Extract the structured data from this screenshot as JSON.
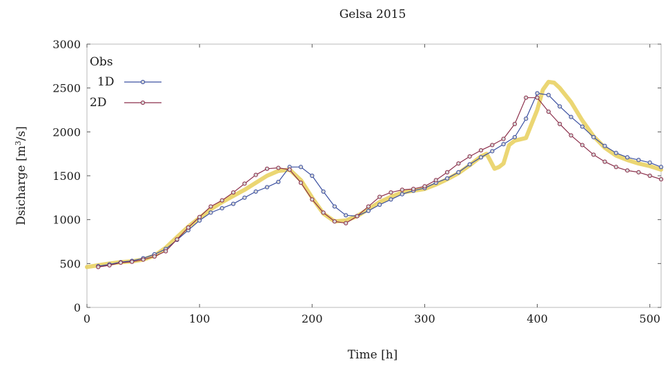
{
  "chart_data": {
    "type": "line",
    "title": "Gelsa 2015",
    "xlabel": "Time [h]",
    "ylabel_main": "Dsicharge [m",
    "ylabel_sup": "3",
    "ylabel_tail": "/s]",
    "xlim": [
      0,
      510
    ],
    "ylim": [
      0,
      3000
    ],
    "xticks": [
      "0",
      "100",
      "200",
      "300",
      "400",
      "500"
    ],
    "xtick_values": [
      0,
      100,
      200,
      300,
      400,
      500
    ],
    "yticks": [
      "0",
      "500",
      "1000",
      "1500",
      "2000",
      "2500",
      "3000"
    ],
    "ytick_values": [
      0,
      500,
      1000,
      1500,
      2000,
      2500,
      3000
    ],
    "legend_position": "top-left",
    "grid": false,
    "series": [
      {
        "name": "Obs",
        "color": "#e8cf5a",
        "x": [
          0,
          10,
          20,
          30,
          40,
          50,
          60,
          70,
          80,
          90,
          100,
          110,
          120,
          130,
          140,
          150,
          160,
          170,
          180,
          190,
          200,
          210,
          220,
          230,
          240,
          250,
          260,
          270,
          280,
          290,
          300,
          310,
          320,
          330,
          340,
          350,
          355,
          358,
          362,
          366,
          370,
          375,
          380,
          390,
          400,
          405,
          410,
          415,
          420,
          430,
          440,
          450,
          460,
          470,
          480,
          490,
          500,
          510
        ],
        "y": [
          460,
          480,
          500,
          515,
          525,
          545,
          590,
          680,
          800,
          920,
          1020,
          1120,
          1200,
          1270,
          1340,
          1420,
          1500,
          1555,
          1570,
          1450,
          1250,
          1070,
          980,
          990,
          1040,
          1120,
          1200,
          1260,
          1310,
          1330,
          1350,
          1400,
          1460,
          1530,
          1620,
          1720,
          1750,
          1680,
          1580,
          1600,
          1640,
          1850,
          1900,
          1930,
          2250,
          2480,
          2570,
          2560,
          2500,
          2340,
          2130,
          1950,
          1820,
          1730,
          1680,
          1640,
          1610,
          1570
        ]
      },
      {
        "name": "1D",
        "color": "#3a4fa0",
        "x": [
          10,
          20,
          30,
          40,
          50,
          60,
          70,
          80,
          90,
          100,
          110,
          120,
          130,
          140,
          150,
          160,
          170,
          180,
          190,
          200,
          210,
          220,
          230,
          240,
          250,
          260,
          270,
          280,
          290,
          300,
          310,
          320,
          330,
          340,
          350,
          360,
          370,
          380,
          390,
          400,
          410,
          420,
          430,
          440,
          450,
          460,
          470,
          480,
          490,
          500,
          510
        ],
        "y": [
          470,
          490,
          515,
          530,
          560,
          605,
          665,
          770,
          880,
          990,
          1080,
          1130,
          1180,
          1250,
          1320,
          1370,
          1430,
          1600,
          1600,
          1500,
          1320,
          1150,
          1050,
          1040,
          1100,
          1170,
          1230,
          1290,
          1330,
          1360,
          1420,
          1470,
          1540,
          1630,
          1710,
          1780,
          1860,
          1940,
          2150,
          2440,
          2420,
          2290,
          2170,
          2060,
          1940,
          1840,
          1760,
          1710,
          1680,
          1650,
          1600
        ]
      },
      {
        "name": "2D",
        "color": "#8b2e4a",
        "x": [
          10,
          20,
          30,
          40,
          50,
          60,
          70,
          80,
          90,
          100,
          110,
          120,
          130,
          140,
          150,
          160,
          170,
          180,
          190,
          200,
          210,
          220,
          230,
          240,
          250,
          260,
          270,
          280,
          290,
          300,
          310,
          320,
          330,
          340,
          350,
          360,
          370,
          380,
          390,
          400,
          410,
          420,
          430,
          440,
          450,
          460,
          470,
          480,
          490,
          500,
          510
        ],
        "y": [
          460,
          480,
          510,
          520,
          545,
          580,
          640,
          775,
          910,
          1030,
          1150,
          1220,
          1310,
          1410,
          1510,
          1580,
          1590,
          1570,
          1420,
          1230,
          1080,
          980,
          960,
          1040,
          1150,
          1260,
          1310,
          1340,
          1350,
          1380,
          1450,
          1540,
          1640,
          1720,
          1790,
          1850,
          1920,
          2090,
          2390,
          2390,
          2230,
          2090,
          1960,
          1850,
          1740,
          1660,
          1600,
          1560,
          1540,
          1500,
          1460
        ]
      }
    ]
  }
}
